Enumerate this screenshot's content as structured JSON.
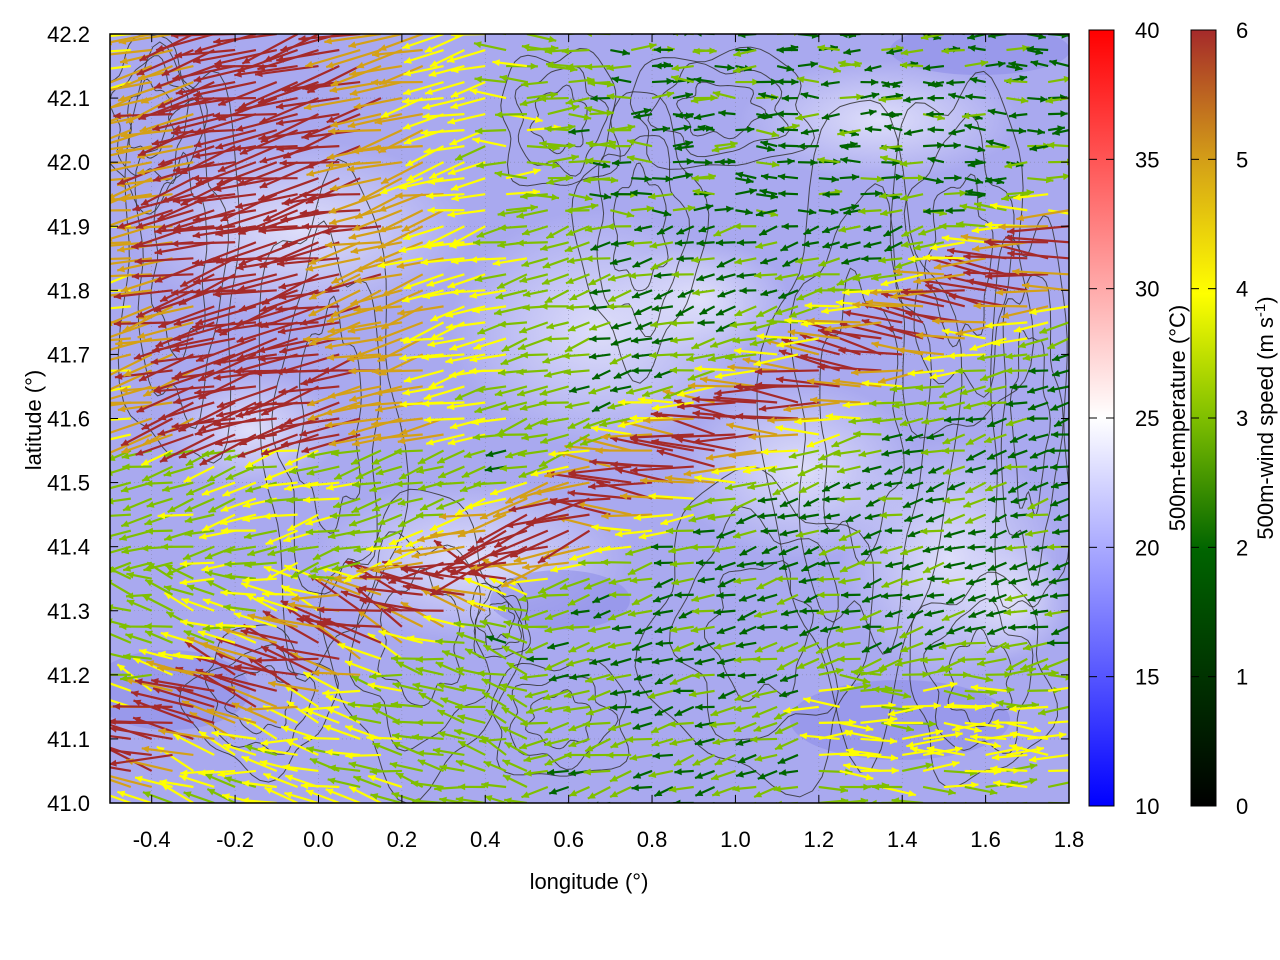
{
  "chart_data": {
    "type": "vector-field",
    "xlabel": "longitude (°)",
    "ylabel": "latitude (°)",
    "xlim": [
      -0.5,
      1.8
    ],
    "ylim": [
      41.0,
      42.2
    ],
    "x_ticks": [
      -0.4,
      -0.2,
      0.0,
      0.2,
      0.4,
      0.6,
      0.8,
      1.0,
      1.2,
      1.4,
      1.6,
      1.8
    ],
    "x_tick_labels": [
      "-0.4",
      "-0.2",
      "0.0",
      "0.2",
      "0.4",
      "0.6",
      "0.8",
      "1.0",
      "1.2",
      "1.4",
      "1.6",
      "1.8"
    ],
    "y_ticks": [
      41.0,
      41.1,
      41.2,
      41.3,
      41.4,
      41.5,
      41.6,
      41.7,
      41.8,
      41.9,
      42.0,
      42.1,
      42.2
    ],
    "y_tick_labels": [
      "41.0",
      "41.1",
      "41.2",
      "41.3",
      "41.4",
      "41.5",
      "41.6",
      "41.7",
      "41.8",
      "41.9",
      "42.0",
      "42.1",
      "42.2"
    ],
    "grid": true,
    "background_field": {
      "name": "500m-temperature",
      "colorbar_label": "500m-temperature (°C)",
      "range": [
        10,
        40
      ],
      "ticks": [
        10,
        15,
        20,
        25,
        30,
        35,
        40
      ],
      "tick_labels": [
        "10",
        "15",
        "20",
        "25",
        "30",
        "35",
        "40"
      ],
      "colors": [
        "#0000ff",
        "#ffffff",
        "#ff0000"
      ],
      "typical_value": 19
    },
    "vector_field": {
      "name": "500m-wind speed",
      "colorbar_label": "500m-wind speed (m s",
      "colorbar_label_sup": "-1",
      "colorbar_label_end": ")",
      "range": [
        0,
        6
      ],
      "ticks": [
        0,
        1,
        2,
        3,
        4,
        5,
        6
      ],
      "tick_labels": [
        "0",
        "1",
        "2",
        "3",
        "4",
        "5",
        "6"
      ],
      "colors": [
        "#000000",
        "#006400",
        "#7fbf00",
        "#ffff00",
        "#d4a017",
        "#a52a2a"
      ],
      "grid_step_lon": 0.05,
      "grid_step_lat": 0.025
    },
    "contour_levels": [
      "terrain"
    ],
    "contour_color": "#333333"
  }
}
